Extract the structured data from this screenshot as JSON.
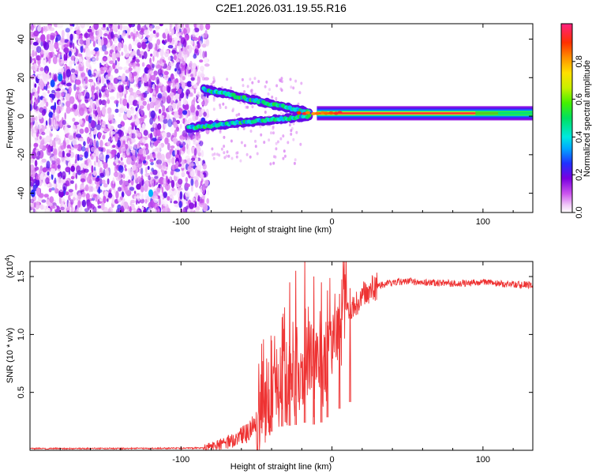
{
  "chart_data": [
    {
      "type": "heatmap",
      "title": "C2E1.2026.031.19.55.R16",
      "xlabel": "Height of straight line (km)",
      "ylabel": "Frequency (Hz)",
      "xlim": [
        -200,
        133
      ],
      "ylim": [
        -50,
        48
      ],
      "xticks": [
        -100,
        0,
        100
      ],
      "xtick_labels": [
        "-100",
        "0",
        "100"
      ],
      "yticks": [
        -40,
        -20,
        0,
        20,
        40
      ],
      "ytick_labels": [
        "-40",
        "-20",
        "0",
        "20",
        "40"
      ],
      "colorbar": {
        "label": "Normalized spectral amplitude",
        "range": [
          0.0,
          1.0
        ],
        "ticks": [
          0.0,
          0.2,
          0.4,
          0.6,
          0.8
        ],
        "tick_labels": [
          "0.0",
          "0.2",
          "0.4",
          "0.6",
          "0.8"
        ]
      },
      "features": {
        "noise_region_x": [
          -200,
          -82
        ],
        "main_line": {
          "x": [
            -10,
            133
          ],
          "freq": 1.5,
          "peak_amplitude": 0.95
        },
        "upper_branch": {
          "x": [
            -85,
            -15
          ],
          "freq": [
            14,
            2
          ]
        },
        "lower_branch": {
          "x": [
            -95,
            -15
          ],
          "freq": [
            -6,
            0
          ]
        }
      }
    },
    {
      "type": "line",
      "title": "",
      "xlabel": "Height of straight line (km)",
      "ylabel": "SNR (10 * v/v)",
      "scale_note": "(x10",
      "scale_exponent": "4",
      "scale_close": ")",
      "xlim": [
        -200,
        133
      ],
      "ylim": [
        0,
        1.63
      ],
      "xticks": [
        -100,
        0,
        100
      ],
      "xtick_labels": [
        "-100",
        "0",
        "100"
      ],
      "yticks": [
        0.5,
        1.0,
        1.5
      ],
      "ytick_labels": [
        "0.5",
        "1.0",
        "1.5"
      ],
      "series": [
        {
          "name": "SNR",
          "color": "#ee3333",
          "x": [
            -200,
            -150,
            -100,
            -85,
            -75,
            -65,
            -55,
            -48,
            -42,
            -38,
            -34,
            -30,
            -26,
            -22,
            -18,
            -14,
            -10,
            -6,
            -2,
            2,
            6,
            10,
            15,
            20,
            25,
            30,
            40,
            50,
            60,
            80,
            100,
            120,
            133
          ],
          "y": [
            0.015,
            0.015,
            0.018,
            0.02,
            0.04,
            0.09,
            0.16,
            0.3,
            0.42,
            0.5,
            0.58,
            0.62,
            0.6,
            0.65,
            0.68,
            0.62,
            0.65,
            0.7,
            0.85,
            0.95,
            1.05,
            1.15,
            1.25,
            1.33,
            1.38,
            1.42,
            1.45,
            1.46,
            1.45,
            1.44,
            1.45,
            1.43,
            1.43
          ],
          "spikes": [
            {
              "x": -40,
              "y": 0.95
            },
            {
              "x": -33,
              "y": 1.15
            },
            {
              "x": -28,
              "y": 1.45
            },
            {
              "x": -24,
              "y": 1.55
            },
            {
              "x": -18,
              "y": 1.63
            },
            {
              "x": -12,
              "y": 1.5
            },
            {
              "x": -7,
              "y": 1.45
            },
            {
              "x": -3,
              "y": 1.38
            },
            {
              "x": 5,
              "y": 1.35
            },
            {
              "x": 12,
              "y": 1.4
            }
          ]
        }
      ]
    }
  ]
}
